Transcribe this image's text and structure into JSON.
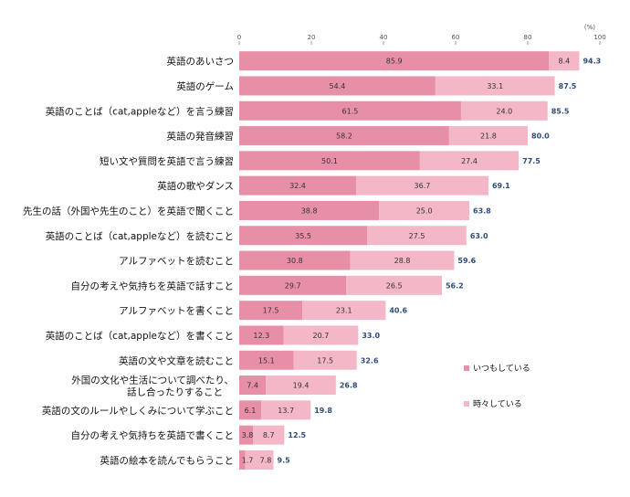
{
  "chart_data": {
    "type": "bar",
    "orientation": "horizontal",
    "stacked": true,
    "unit": "(%)",
    "xlim": [
      0,
      100
    ],
    "xticks": [
      0,
      20,
      40,
      60,
      80,
      100
    ],
    "grid": false,
    "legend_position": "right",
    "categories": [
      "英語のあいさつ",
      "英語のゲーム",
      "英語のことば（cat,appleなど）を言う練習",
      "英語の発音練習",
      "短い文や質問を英語で言う練習",
      "英語の歌やダンス",
      "先生の話（外国や先生のこと）を英語で聞くこと",
      "英語のことば（cat,appleなど）を読むこと",
      "アルファベットを読むこと",
      "自分の考えや気持ちを英語で話すこと",
      "アルファベットを書くこと",
      "英語のことば（cat,appleなど）を書くこと",
      "英語の文や文章を読むこと",
      "外国の文化や生活について調べたり、話し合ったりすること",
      "英語の文のルールやしくみについて学ぶこと",
      "自分の考えや気持ちを英語で書くこと",
      "英語の絵本を読んでもらうこと"
    ],
    "series": [
      {
        "name": "いつもしている",
        "color": "#e88fa8",
        "values": [
          85.9,
          54.4,
          61.5,
          58.2,
          50.1,
          32.4,
          38.8,
          35.5,
          30.8,
          29.7,
          17.5,
          12.3,
          15.1,
          7.4,
          6.1,
          3.8,
          1.7
        ]
      },
      {
        "name": "時々している",
        "color": "#f4b7c7",
        "values": [
          8.4,
          33.1,
          24.0,
          21.8,
          27.4,
          36.7,
          25.0,
          27.5,
          28.8,
          26.5,
          23.1,
          20.7,
          17.5,
          19.4,
          13.7,
          8.7,
          7.8
        ]
      }
    ],
    "totals": [
      94.3,
      87.5,
      85.5,
      80.0,
      77.5,
      69.1,
      63.8,
      63.0,
      59.6,
      56.2,
      40.6,
      33.0,
      32.6,
      26.8,
      19.8,
      12.5,
      9.5
    ]
  }
}
